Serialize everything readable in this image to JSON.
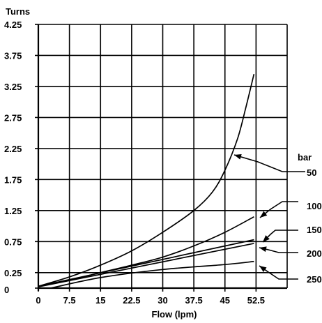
{
  "chart_data": {
    "type": "line",
    "ylabel": "Turns",
    "xlabel": "Flow (lpm)",
    "xlim": [
      0,
      60
    ],
    "ylim": [
      0,
      4.25
    ],
    "x_ticks": [
      0,
      7.5,
      15,
      22.5,
      30,
      37.5,
      45,
      52.5
    ],
    "x_tick_labels": [
      "0",
      "7.5",
      "15",
      "22.5",
      "30",
      "37.5",
      "45",
      "52.5"
    ],
    "y_ticks": [
      0,
      0.25,
      0.75,
      1.25,
      1.75,
      2.25,
      2.75,
      3.25,
      3.75,
      4.25
    ],
    "y_tick_labels": [
      "0",
      "0.25",
      "0.75",
      "1.25",
      "1.75",
      "2.25",
      "2.75",
      "3.25",
      "3.75",
      "4.25"
    ],
    "grid": true,
    "legend_title": "bar",
    "series": [
      {
        "name": "50",
        "x": [
          0,
          7.5,
          15,
          22.5,
          30,
          37.5,
          42,
          45,
          48,
          50,
          52
        ],
        "y": [
          0.03,
          0.18,
          0.37,
          0.6,
          0.9,
          1.25,
          1.55,
          1.9,
          2.4,
          2.9,
          3.45
        ]
      },
      {
        "name": "100",
        "x": [
          0,
          7.5,
          15,
          22.5,
          30,
          37.5,
          45,
          52
        ],
        "y": [
          0.03,
          0.13,
          0.25,
          0.37,
          0.5,
          0.68,
          0.9,
          1.15
        ]
      },
      {
        "name": "150",
        "x": [
          0,
          52
        ],
        "y": [
          0.03,
          0.78
        ]
      },
      {
        "name": "200",
        "x": [
          0,
          52
        ],
        "y": [
          0.02,
          0.72
        ]
      },
      {
        "name": "250",
        "x": [
          3,
          15,
          30,
          45,
          52
        ],
        "y": [
          0,
          0.17,
          0.3,
          0.38,
          0.43
        ]
      }
    ]
  }
}
